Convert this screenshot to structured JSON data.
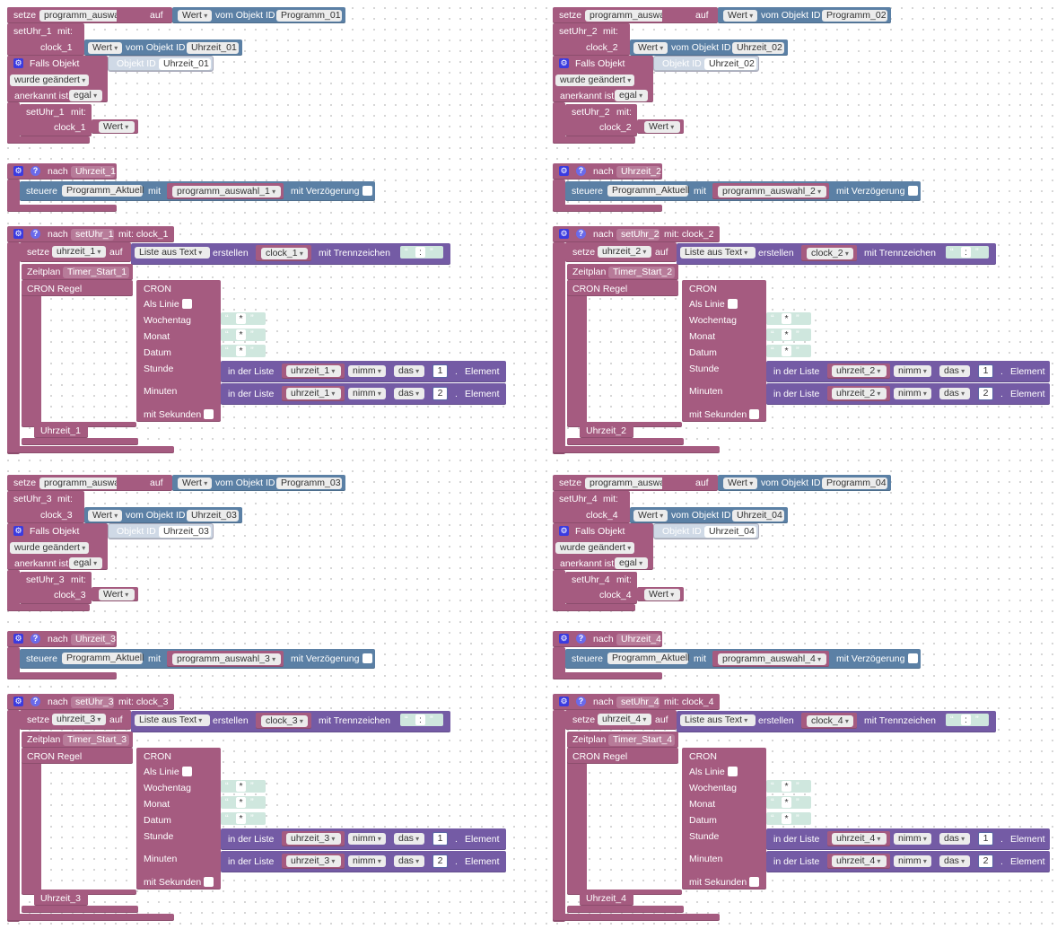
{
  "groups": [
    {
      "n": "1",
      "setze": "setze",
      "var_prog": "programm_auswahl_1",
      "auf": "auf",
      "wert": "Wert",
      "vom_objekt_id": "vom Objekt ID",
      "programm_obj": "Programm_01",
      "setuhr": "setUhr_1",
      "mit": "mit:",
      "clock": "clock_1",
      "uhrzeit_obj": "Uhrzeit_01",
      "falls_objekt": "Falls Objekt",
      "objekt_id": "Objekt ID",
      "wurde_geaendert": "wurde geändert",
      "anerkannt_ist": "anerkannt ist",
      "egal": "egal",
      "nach": "nach",
      "uhrzeit_trigger": "Uhrzeit_1",
      "steuere": "steuere",
      "programm_aktuell": "Programm_Aktuell",
      "mit_word": "mit",
      "mit_verzoegerung": "mit Verzögerung",
      "nach_setuhr_suffix": "mit: clock_1",
      "var_uhrzeit": "uhrzeit_1",
      "liste_aus_text": "Liste aus Text",
      "erstellen": "erstellen",
      "mit_trennzeichen": "mit Trennzeichen",
      "trenn": ":",
      "zeitplan": "Zeitplan",
      "timer": "Timer_Start_1",
      "cron_regel": "CRON Regel",
      "cron": "CRON",
      "als_linie": "Als Linie",
      "wochentag": "Wochentag",
      "monat": "Monat",
      "datum": "Datum",
      "star": "*",
      "stunde": "Stunde",
      "minuten": "Minuten",
      "mit_sekunden": "mit Sekunden",
      "in_der_liste": "in der Liste",
      "nimm": "nimm",
      "das": "das",
      "idx1": "1",
      "idx2": "2",
      "element": "Element",
      "uhrzeit_label": "Uhrzeit_1"
    },
    {
      "n": "2",
      "setze": "setze",
      "var_prog": "programm_auswahl_2",
      "auf": "auf",
      "wert": "Wert",
      "vom_objekt_id": "vom Objekt ID",
      "programm_obj": "Programm_02",
      "setuhr": "setUhr_2",
      "mit": "mit:",
      "clock": "clock_2",
      "uhrzeit_obj": "Uhrzeit_02",
      "falls_objekt": "Falls Objekt",
      "objekt_id": "Objekt ID",
      "wurde_geaendert": "wurde geändert",
      "anerkannt_ist": "anerkannt ist",
      "egal": "egal",
      "nach": "nach",
      "uhrzeit_trigger": "Uhrzeit_2",
      "steuere": "steuere",
      "programm_aktuell": "Programm_Aktuell",
      "mit_word": "mit",
      "mit_verzoegerung": "mit Verzögerung",
      "nach_setuhr_suffix": "mit: clock_2",
      "var_uhrzeit": "uhrzeit_2",
      "liste_aus_text": "Liste aus Text",
      "erstellen": "erstellen",
      "mit_trennzeichen": "mit Trennzeichen",
      "trenn": ":",
      "zeitplan": "Zeitplan",
      "timer": "Timer_Start_2",
      "cron_regel": "CRON Regel",
      "cron": "CRON",
      "als_linie": "Als Linie",
      "wochentag": "Wochentag",
      "monat": "Monat",
      "datum": "Datum",
      "star": "*",
      "stunde": "Stunde",
      "minuten": "Minuten",
      "mit_sekunden": "mit Sekunden",
      "in_der_liste": "in der Liste",
      "nimm": "nimm",
      "das": "das",
      "idx1": "1",
      "idx2": "2",
      "element": "Element",
      "uhrzeit_label": "Uhrzeit_2"
    },
    {
      "n": "3",
      "setze": "setze",
      "var_prog": "programm_auswahl_3",
      "auf": "auf",
      "wert": "Wert",
      "vom_objekt_id": "vom Objekt ID",
      "programm_obj": "Programm_03",
      "setuhr": "setUhr_3",
      "mit": "mit:",
      "clock": "clock_3",
      "uhrzeit_obj": "Uhrzeit_03",
      "falls_objekt": "Falls Objekt",
      "objekt_id": "Objekt ID",
      "wurde_geaendert": "wurde geändert",
      "anerkannt_ist": "anerkannt ist",
      "egal": "egal",
      "nach": "nach",
      "uhrzeit_trigger": "Uhrzeit_3",
      "steuere": "steuere",
      "programm_aktuell": "Programm_Aktuell",
      "mit_word": "mit",
      "mit_verzoegerung": "mit Verzögerung",
      "nach_setuhr_suffix": "mit: clock_3",
      "var_uhrzeit": "uhrzeit_3",
      "liste_aus_text": "Liste aus Text",
      "erstellen": "erstellen",
      "mit_trennzeichen": "mit Trennzeichen",
      "trenn": ":",
      "zeitplan": "Zeitplan",
      "timer": "Timer_Start_3",
      "cron_regel": "CRON Regel",
      "cron": "CRON",
      "als_linie": "Als Linie",
      "wochentag": "Wochentag",
      "monat": "Monat",
      "datum": "Datum",
      "star": "*",
      "stunde": "Stunde",
      "minuten": "Minuten",
      "mit_sekunden": "mit Sekunden",
      "in_der_liste": "in der Liste",
      "nimm": "nimm",
      "das": "das",
      "idx1": "1",
      "idx2": "2",
      "element": "Element",
      "uhrzeit_label": "Uhrzeit_3"
    },
    {
      "n": "4",
      "setze": "setze",
      "var_prog": "programm_auswahl_4",
      "auf": "auf",
      "wert": "Wert",
      "vom_objekt_id": "vom Objekt ID",
      "programm_obj": "Programm_04",
      "setuhr": "setUhr_4",
      "mit": "mit:",
      "clock": "clock_4",
      "uhrzeit_obj": "Uhrzeit_04",
      "falls_objekt": "Falls Objekt",
      "objekt_id": "Objekt ID",
      "wurde_geaendert": "wurde geändert",
      "anerkannt_ist": "anerkannt ist",
      "egal": "egal",
      "nach": "nach",
      "uhrzeit_trigger": "Uhrzeit_4",
      "steuere": "steuere",
      "programm_aktuell": "Programm_Aktuell",
      "mit_word": "mit",
      "mit_verzoegerung": "mit Verzögerung",
      "nach_setuhr_suffix": "mit: clock_4",
      "var_uhrzeit": "uhrzeit_4",
      "liste_aus_text": "Liste aus Text",
      "erstellen": "erstellen",
      "mit_trennzeichen": "mit Trennzeichen",
      "trenn": ":",
      "zeitplan": "Zeitplan",
      "timer": "Timer_Start_4",
      "cron_regel": "CRON Regel",
      "cron": "CRON",
      "als_linie": "Als Linie",
      "wochentag": "Wochentag",
      "monat": "Monat",
      "datum": "Datum",
      "star": "*",
      "stunde": "Stunde",
      "minuten": "Minuten",
      "mit_sekunden": "mit Sekunden",
      "in_der_liste": "in der Liste",
      "nimm": "nimm",
      "das": "das",
      "idx1": "1",
      "idx2": "2",
      "element": "Element",
      "uhrzeit_label": "Uhrzeit_4"
    }
  ],
  "icons": {
    "gear": "gear-icon",
    "help": "help-icon"
  },
  "colors": {
    "procedure": "#a55b80",
    "action": "#5b80a5",
    "list": "#745ba5",
    "text": "#5ba58c",
    "math": "#5b67a5"
  }
}
